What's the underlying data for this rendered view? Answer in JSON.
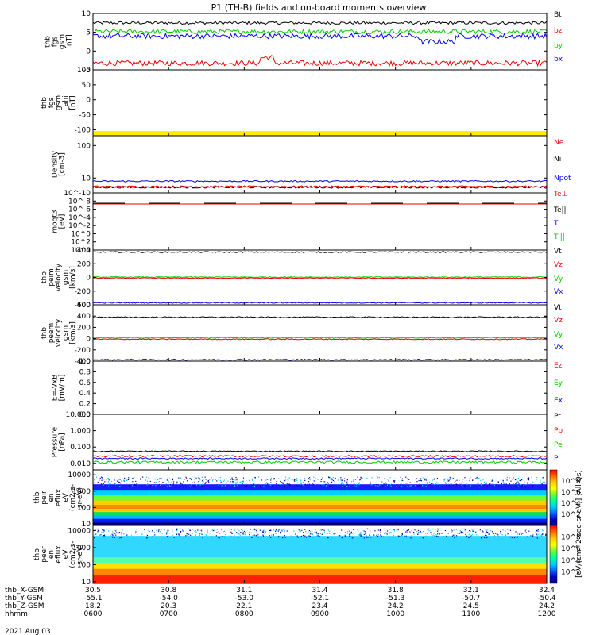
{
  "title": "P1 (TH-B) fields and on-board moments overview",
  "date": "2021 Aug 03",
  "chart_data": [
    {
      "id": "fgs",
      "type": "line",
      "ylabel": [
        "thb",
        "fgs",
        "gsm",
        "[nT]"
      ],
      "ylim": [
        -5,
        10
      ],
      "yticks": [
        -5,
        0,
        5,
        10
      ],
      "series": [
        {
          "name": "Bt",
          "color": "#000000",
          "base": 7.5,
          "noise": 0.4
        },
        {
          "name": "bz",
          "color": "#ee0000",
          "base": -3.2,
          "noise": 0.7
        },
        {
          "name": "by",
          "color": "#00cc00",
          "base": 5.2,
          "noise": 0.6
        },
        {
          "name": "bx",
          "color": "#0000ee",
          "base": 4.0,
          "noise": 0.7
        }
      ]
    },
    {
      "id": "fgs_ahi",
      "type": "line",
      "ylabel": [
        "thb",
        "fgs",
        "gsm",
        "_ahi",
        "[nT]"
      ],
      "ylim": [
        -120,
        100
      ],
      "yticks": [
        -100,
        -50,
        0,
        50,
        100
      ],
      "band": {
        "y": -120,
        "color": "#ffee00"
      }
    },
    {
      "id": "dens",
      "type": "line",
      "log": true,
      "ylabel": [
        "Density",
        "[cm-3]"
      ],
      "ylim": [
        3.5,
        200
      ],
      "yticks": [
        10,
        100
      ],
      "series": [
        {
          "name": "Ne",
          "color": "#ee0000",
          "base": 5.5,
          "noise": 0.3
        },
        {
          "name": "Ni",
          "color": "#000000",
          "base": 5.2,
          "noise": 0.3
        },
        {
          "name": "Npot",
          "color": "#0000ee",
          "base": 8.0,
          "noise": 0.4
        }
      ]
    },
    {
      "id": "temp",
      "type": "line",
      "ylabel": [
        "moqt3",
        "[eV]"
      ],
      "yticks": [
        "10^4",
        "10^2",
        "10^0",
        "10^-2",
        "10^-4",
        "10^-6",
        "10^-8",
        "10^-10"
      ],
      "legend": [
        "Te⊥",
        "Te||",
        "Ti⊥",
        "Ti||"
      ],
      "legend_colors": [
        "#ee0000",
        "#000000",
        "#0000ee",
        "#00cc00"
      ]
    },
    {
      "id": "vi",
      "type": "line",
      "ylabel": [
        "thb",
        "peim",
        "velocity",
        "gsm",
        "[km/s]"
      ],
      "ylim": [
        -400,
        400
      ],
      "yticks": [
        -400,
        -200,
        0,
        200,
        400
      ],
      "series": [
        {
          "name": "Vt",
          "color": "#000000",
          "base": 370,
          "noise": 8
        },
        {
          "name": "Vz",
          "color": "#ee0000",
          "base": -10,
          "noise": 6
        },
        {
          "name": "Vy",
          "color": "#00cc00",
          "base": 5,
          "noise": 6
        },
        {
          "name": "Vx",
          "color": "#0000ee",
          "base": -370,
          "noise": 8
        }
      ]
    },
    {
      "id": "ve",
      "type": "line",
      "ylabel": [
        "thb",
        "peem",
        "velocity",
        "gsm",
        "[km/s]"
      ],
      "ylim": [
        -400,
        600
      ],
      "yticks": [
        -400,
        -200,
        0,
        200,
        400,
        600
      ],
      "series": [
        {
          "name": "Vt",
          "color": "#000000",
          "base": 380,
          "noise": 10
        },
        {
          "name": "Vz",
          "color": "#ee0000",
          "base": -10,
          "noise": 8
        },
        {
          "name": "Vy",
          "color": "#00cc00",
          "base": 15,
          "noise": 8
        },
        {
          "name": "Vx",
          "color": "#0000ee",
          "base": -375,
          "noise": 10
        }
      ]
    },
    {
      "id": "efield",
      "type": "line",
      "ylabel": [
        "E=-VxB",
        "[mV/m]"
      ],
      "ylim": [
        0,
        1
      ],
      "yticks": [
        "0.0",
        "0.2",
        "0.4",
        "0.6",
        "0.8",
        "1.0"
      ],
      "legend": [
        "Ez",
        "Ey",
        "Ex"
      ],
      "legend_colors": [
        "#ee0000",
        "#00cc00",
        "#0000ee"
      ]
    },
    {
      "id": "press",
      "type": "line",
      "log": true,
      "ylabel": [
        "Pressure",
        "[nPa]"
      ],
      "ylim": [
        0.004,
        10
      ],
      "yticks": [
        "0.010",
        "0.100",
        "1.000",
        "10.000"
      ],
      "series": [
        {
          "name": "Pt",
          "color": "#000000",
          "base": 0.055,
          "noise": 0.004
        },
        {
          "name": "Pb",
          "color": "#ee0000",
          "base": 0.028,
          "noise": 0.003
        },
        {
          "name": "Pe",
          "color": "#00cc00",
          "base": 0.012,
          "noise": 0.002
        },
        {
          "name": "Pi",
          "color": "#0000ee",
          "base": 0.02,
          "noise": 0.002
        }
      ]
    },
    {
      "id": "ion_spec",
      "type": "heatmap",
      "ylabel": [
        "thb",
        "peir",
        "en",
        "eflux",
        "eV",
        "(cm2-s-",
        "sr-eV)"
      ],
      "yticks": [
        "10",
        "100",
        "1000",
        "10000"
      ]
    },
    {
      "id": "ele_spec",
      "type": "heatmap",
      "ylabel": [
        "thb",
        "peer",
        "en",
        "eflux",
        "eV",
        "(cm2-s-",
        "sr-eV)"
      ],
      "yticks": [
        "10",
        "100",
        "1000",
        "10000"
      ]
    }
  ],
  "colorbar": {
    "label": "[eV/(cm^2-sec-sr-eV)] (All Qs)",
    "ticks_upper": [
      "10^2",
      "10^4",
      "10^6",
      "10^8"
    ],
    "ticks_lower": [
      "10^2",
      "10^4",
      "10^6",
      "10^8"
    ]
  },
  "ephemeris": {
    "labels": [
      "thb_X-GSM",
      "thb_Y-GSM",
      "thb_Z-GSM",
      "hhmm"
    ],
    "columns": [
      {
        "x": "30.5",
        "y": "-55.1",
        "z": "18.2",
        "t": "0600"
      },
      {
        "x": "30.8",
        "y": "-54.0",
        "z": "20.3",
        "t": "0700"
      },
      {
        "x": "31.1",
        "y": "-53.0",
        "z": "22.1",
        "t": "0800"
      },
      {
        "x": "31.4",
        "y": "-52.1",
        "z": "23.4",
        "t": "0900"
      },
      {
        "x": "31.8",
        "y": "-51.3",
        "z": "24.2",
        "t": "1000"
      },
      {
        "x": "32.1",
        "y": "-50.7",
        "z": "24.5",
        "t": "1100"
      },
      {
        "x": "32.4",
        "y": "-50.4",
        "z": "24.2",
        "t": "1200"
      }
    ]
  }
}
